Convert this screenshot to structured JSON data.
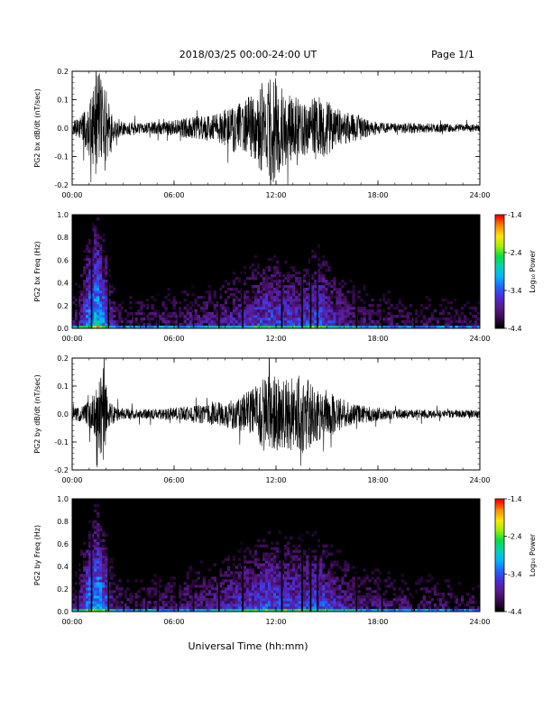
{
  "header": {
    "title": "2018/03/25  00:00-24:00 UT",
    "page_label": "Page 1/1"
  },
  "footer": {
    "xlabel": "Universal Time (hh:mm)"
  },
  "colors": {
    "waveform": "#000000",
    "spectrogram_background": "#000000",
    "colormap": [
      "#000000",
      "#3a0a50",
      "#5a1a8c",
      "#4b2bd6",
      "#1e64ff",
      "#00b4ff",
      "#00d2b4",
      "#00e040",
      "#a0f000",
      "#ffe600",
      "#ff8c00",
      "#ff0000"
    ]
  },
  "chart_data": [
    {
      "type": "line",
      "ylabel": "PG2 bx dB/dt (nT/sec)",
      "xlim": [
        0,
        24
      ],
      "ylim": [
        -0.2,
        0.2
      ],
      "x_ticks": [
        "00:00",
        "06:00",
        "12:00",
        "18:00",
        "24:00"
      ],
      "y_ticks": [
        "-0.2",
        "-0.1",
        "0.0",
        "0.1",
        "0.2"
      ],
      "amplitude_envelope": {
        "hours": [
          0,
          0.5,
          1.0,
          1.4,
          1.7,
          2.0,
          2.4,
          3.0,
          4.0,
          5.0,
          6.0,
          7.0,
          8.0,
          9.0,
          9.8,
          10.5,
          11.2,
          11.8,
          12.3,
          13.0,
          13.8,
          14.5,
          15.3,
          16.0,
          16.8,
          17.5,
          18.5,
          20.0,
          22.0,
          24.0
        ],
        "amplitude": [
          0.025,
          0.04,
          0.11,
          0.19,
          0.21,
          0.15,
          0.05,
          0.025,
          0.02,
          0.022,
          0.03,
          0.04,
          0.05,
          0.07,
          0.1,
          0.12,
          0.17,
          0.21,
          0.15,
          0.12,
          0.1,
          0.12,
          0.09,
          0.06,
          0.05,
          0.03,
          0.02,
          0.02,
          0.015,
          0.015
        ]
      }
    },
    {
      "type": "heatmap",
      "ylabel": "PG2 bx Freq (Hz)",
      "colorbar_label": "Log₁₀ Power",
      "colorbar_ticks": [
        "-1.4",
        "-2.4",
        "-3.4",
        "-4.4"
      ],
      "clim": [
        -4.4,
        -1.4
      ],
      "xlim": [
        0,
        24
      ],
      "ylim": [
        0,
        1.0
      ],
      "x_ticks": [
        "00:00",
        "06:00",
        "12:00",
        "18:00",
        "24:00"
      ],
      "y_ticks": [
        "0.0",
        "0.2",
        "0.4",
        "0.6",
        "0.8",
        "1.0"
      ],
      "dark_gap_hours": [
        0.3,
        1.1,
        2.1,
        3.0,
        3.6,
        4.3,
        5.0,
        6.2,
        7.1,
        8.6,
        10.0,
        12.3,
        13.5,
        14.0,
        14.4,
        16.7,
        18.2,
        20.1,
        22.4
      ],
      "intensity_envelope": {
        "hours": [
          0,
          0.5,
          1.0,
          1.5,
          2.0,
          2.5,
          4.0,
          6.0,
          8.0,
          10.0,
          11.5,
          12.5,
          13.5,
          14.5,
          15.5,
          17.0,
          20.0,
          24.0
        ],
        "level": [
          -4.0,
          -3.7,
          -3.1,
          -2.8,
          -3.3,
          -4.0,
          -4.05,
          -4.0,
          -3.9,
          -3.7,
          -3.45,
          -3.5,
          -3.55,
          -3.35,
          -3.7,
          -3.95,
          -4.1,
          -4.15
        ]
      }
    },
    {
      "type": "line",
      "ylabel": "PG2 by dB/dt (nT/sec)",
      "xlim": [
        0,
        24
      ],
      "ylim": [
        -0.2,
        0.2
      ],
      "x_ticks": [
        "00:00",
        "06:00",
        "12:00",
        "18:00",
        "24:00"
      ],
      "y_ticks": [
        "-0.2",
        "-0.1",
        "0.0",
        "0.1",
        "0.2"
      ],
      "amplitude_envelope": {
        "hours": [
          0,
          0.5,
          1.0,
          1.5,
          1.8,
          2.1,
          2.5,
          3.0,
          4.0,
          5.0,
          6.0,
          7.0,
          8.0,
          9.0,
          10.0,
          10.7,
          11.3,
          11.8,
          12.4,
          13.0,
          13.6,
          14.2,
          15.0,
          15.8,
          16.5,
          17.5,
          18.5,
          20.0,
          22.0,
          24.0
        ],
        "amplitude": [
          0.02,
          0.03,
          0.05,
          0.1,
          0.2,
          0.07,
          0.03,
          0.02,
          0.018,
          0.02,
          0.025,
          0.03,
          0.04,
          0.05,
          0.07,
          0.1,
          0.14,
          0.15,
          0.13,
          0.14,
          0.16,
          0.11,
          0.09,
          0.06,
          0.04,
          0.03,
          0.02,
          0.018,
          0.015,
          0.015
        ]
      }
    },
    {
      "type": "heatmap",
      "ylabel": "PG2 by Freq (Hz)",
      "colorbar_label": "Log₁₀ Power",
      "colorbar_ticks": [
        "-1.4",
        "-2.4",
        "-3.4",
        "-4.4"
      ],
      "clim": [
        -4.4,
        -1.4
      ],
      "xlim": [
        0,
        24
      ],
      "ylim": [
        0,
        1.0
      ],
      "x_ticks": [
        "00:00",
        "06:00",
        "12:00",
        "18:00",
        "24:00"
      ],
      "y_ticks": [
        "0.0",
        "0.2",
        "0.4",
        "0.6",
        "0.8",
        "1.0"
      ],
      "dark_gap_hours": [
        0.3,
        1.1,
        2.1,
        3.0,
        3.6,
        4.3,
        5.0,
        6.2,
        7.1,
        8.6,
        10.0,
        12.3,
        13.5,
        14.0,
        14.4,
        16.7,
        18.2,
        20.1,
        22.4
      ],
      "intensity_envelope": {
        "hours": [
          0,
          0.5,
          1.0,
          1.5,
          2.0,
          2.5,
          4.0,
          6.0,
          8.0,
          10.0,
          11.5,
          12.5,
          13.5,
          14.5,
          15.5,
          17.0,
          20.0,
          24.0
        ],
        "level": [
          -4.0,
          -3.7,
          -3.15,
          -2.9,
          -3.35,
          -4.0,
          -4.05,
          -3.95,
          -3.85,
          -3.6,
          -3.4,
          -3.45,
          -3.5,
          -3.4,
          -3.65,
          -3.9,
          -4.05,
          -4.1
        ]
      }
    }
  ]
}
